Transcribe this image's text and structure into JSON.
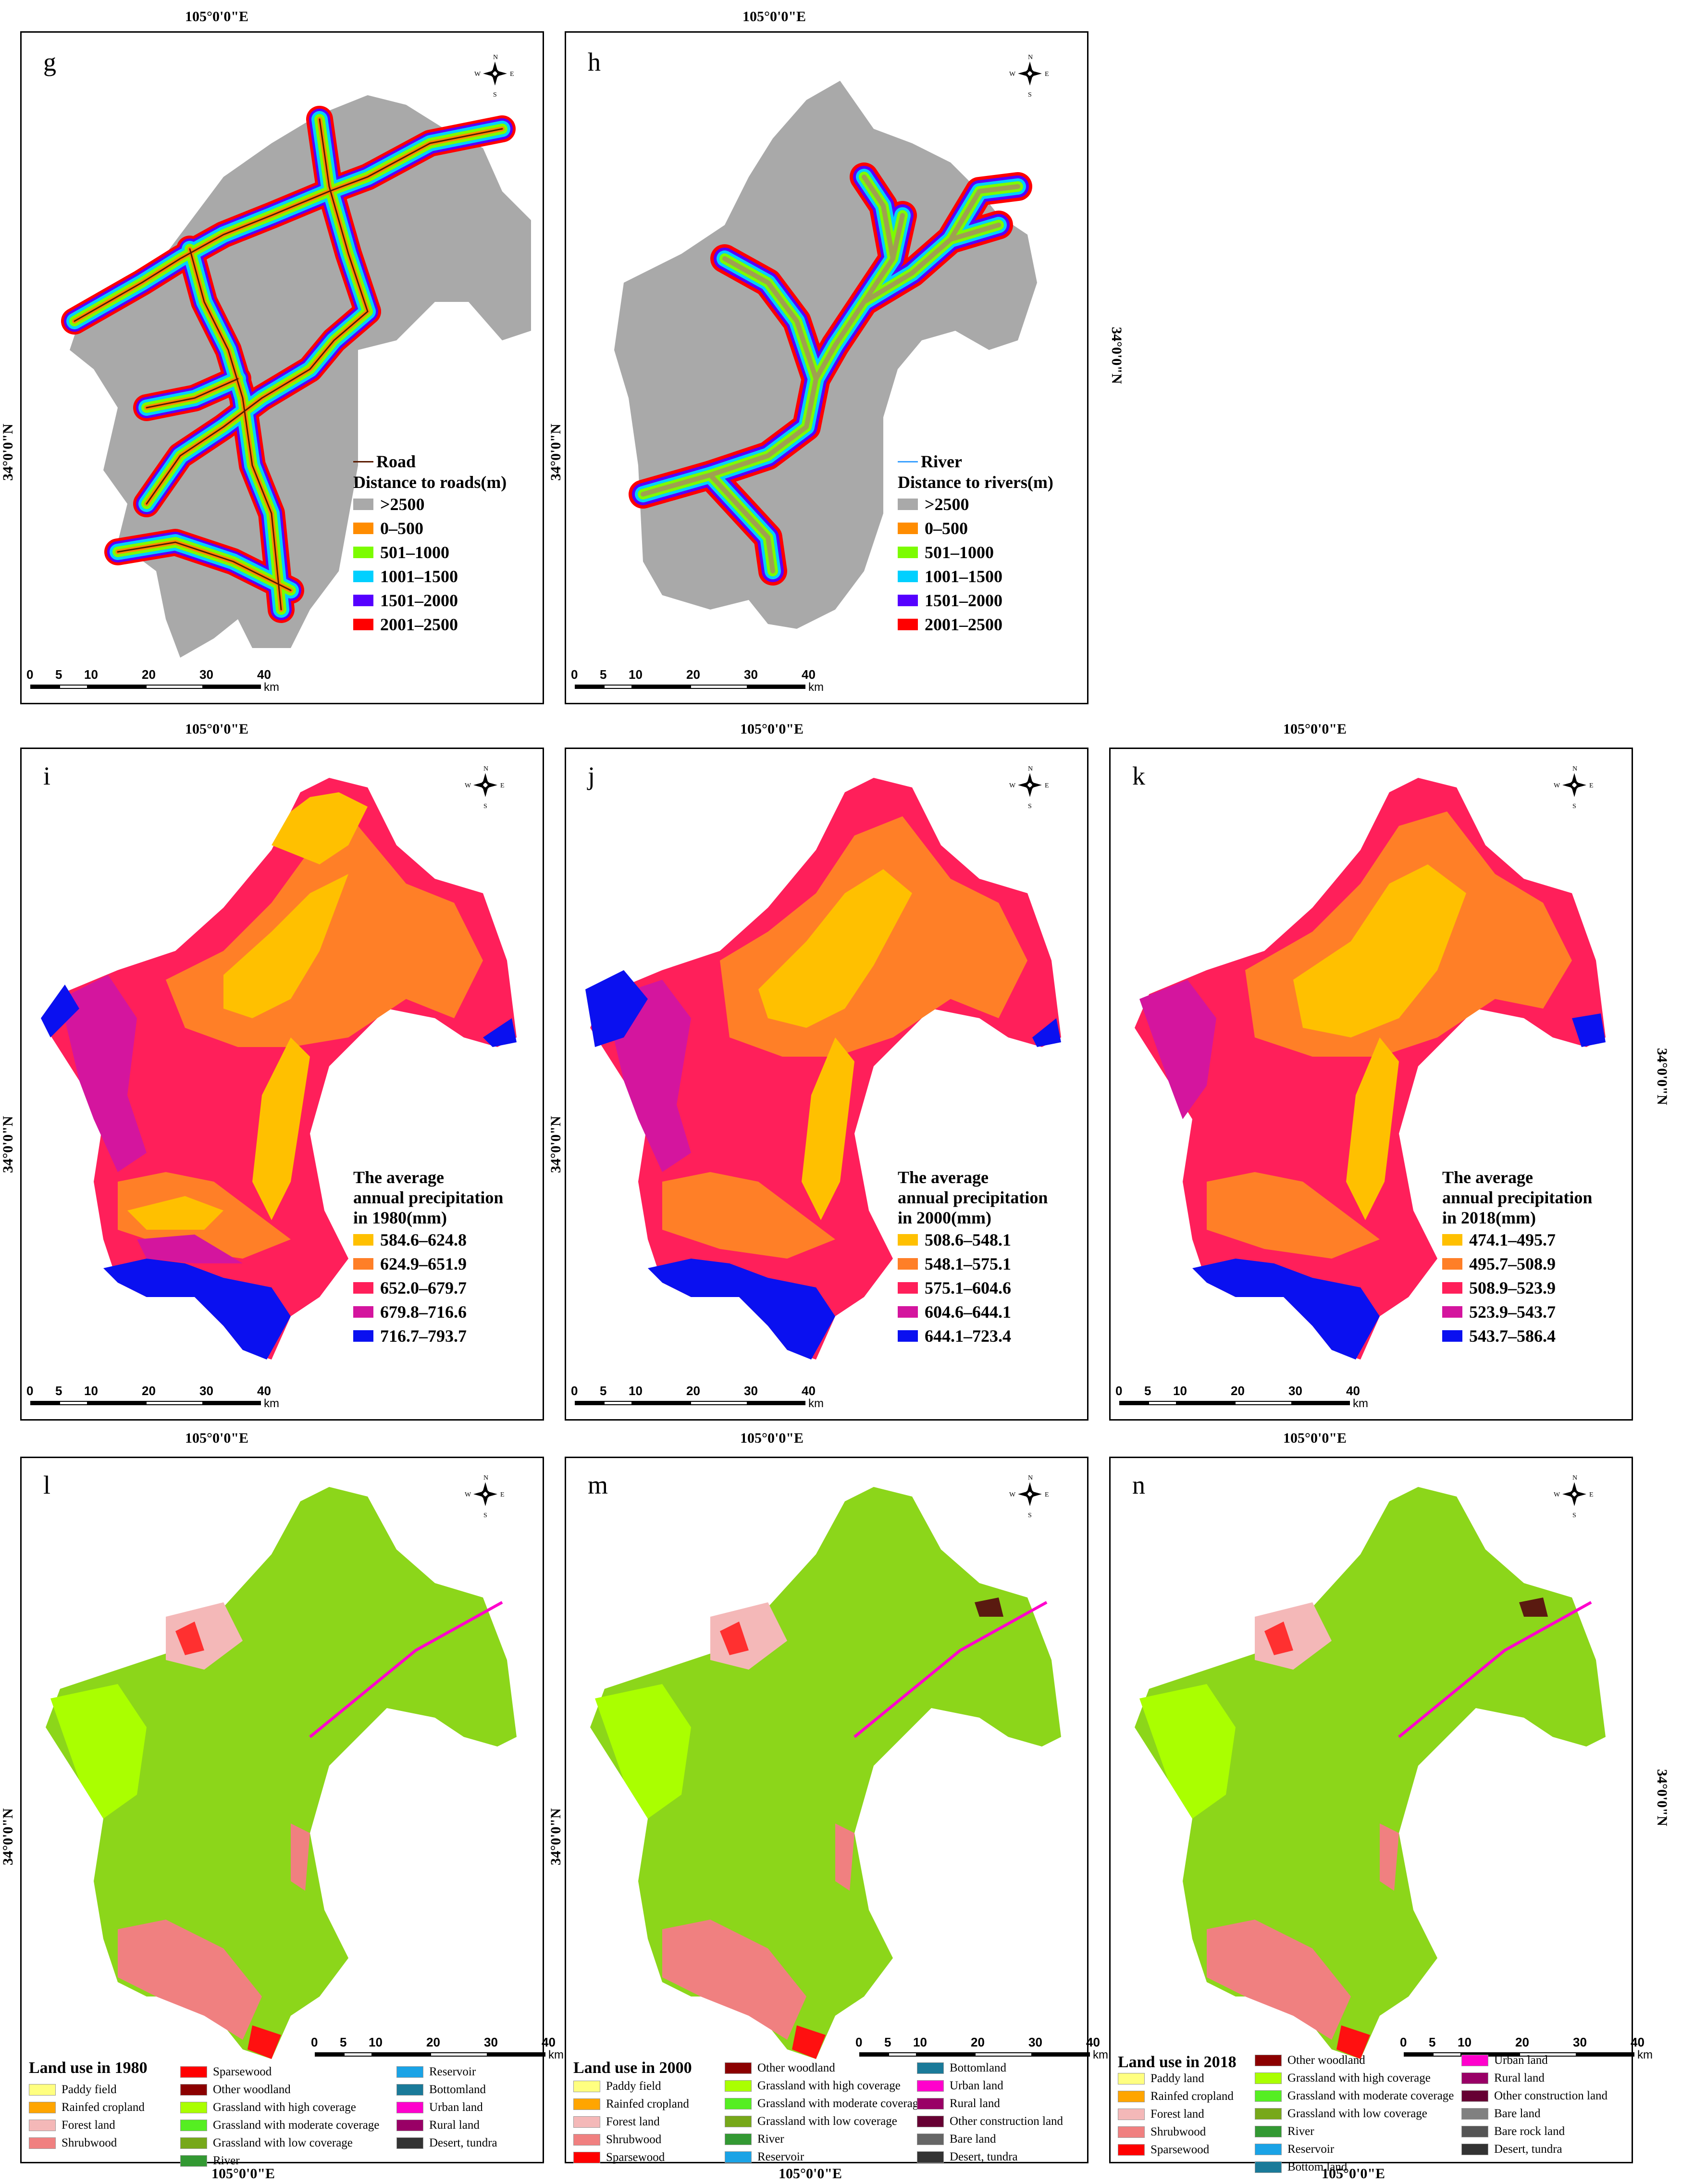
{
  "coords": {
    "lon": "105°0'0\"E",
    "lat": "34°0'0\"N"
  },
  "compass": {
    "n": "N",
    "s": "S",
    "e": "E",
    "w": "W"
  },
  "scale": {
    "ticks": [
      "0",
      "5",
      "10",
      "20",
      "30",
      "40"
    ],
    "unit": "km"
  },
  "panels": {
    "g": {
      "label": "g",
      "line_legend": "Road",
      "legend_title": "Distance to roads(m)",
      "items": [
        {
          "label": ">2500",
          "color": "#a9a9a9"
        },
        {
          "label": "0–500",
          "color": "#ff8c00"
        },
        {
          "label": "501–1000",
          "color": "#7cfc00"
        },
        {
          "label": "1001–1500",
          "color": "#00d0ff"
        },
        {
          "label": "1501–2000",
          "color": "#5500ff"
        },
        {
          "label": "2001–2500",
          "color": "#ff0000"
        }
      ]
    },
    "h": {
      "label": "h",
      "line_legend": "River",
      "legend_title": "Distance to rivers(m)",
      "items": [
        {
          "label": ">2500",
          "color": "#a9a9a9"
        },
        {
          "label": "0–500",
          "color": "#ff8c00"
        },
        {
          "label": "501–1000",
          "color": "#7cfc00"
        },
        {
          "label": "1001–1500",
          "color": "#00d0ff"
        },
        {
          "label": "1501–2000",
          "color": "#5500ff"
        },
        {
          "label": "2001–2500",
          "color": "#ff0000"
        }
      ]
    },
    "i": {
      "label": "i",
      "legend_title": [
        "The average",
        "annual precipitation",
        "in 1980(mm)"
      ],
      "items": [
        {
          "label": "584.6–624.8",
          "color": "#ffc000"
        },
        {
          "label": "624.9–651.9",
          "color": "#ff7f27"
        },
        {
          "label": "652.0–679.7",
          "color": "#ff1f5a"
        },
        {
          "label": "679.8–716.6",
          "color": "#d4159e"
        },
        {
          "label": "716.7–793.7",
          "color": "#0a10f0"
        }
      ]
    },
    "j": {
      "label": "j",
      "legend_title": [
        "The average",
        "annual precipitation",
        "in 2000(mm)"
      ],
      "items": [
        {
          "label": "508.6–548.1",
          "color": "#ffc000"
        },
        {
          "label": "548.1–575.1",
          "color": "#ff7f27"
        },
        {
          "label": "575.1–604.6",
          "color": "#ff1f5a"
        },
        {
          "label": "604.6–644.1",
          "color": "#d4159e"
        },
        {
          "label": "644.1–723.4",
          "color": "#0a10f0"
        }
      ]
    },
    "k": {
      "label": "k",
      "legend_title": [
        "The average",
        "annual precipitation",
        "in 2018(mm)"
      ],
      "items": [
        {
          "label": "474.1–495.7",
          "color": "#ffc000"
        },
        {
          "label": "495.7–508.9",
          "color": "#ff7f27"
        },
        {
          "label": "508.9–523.9",
          "color": "#ff1f5a"
        },
        {
          "label": "523.9–543.7",
          "color": "#d4159e"
        },
        {
          "label": "543.7–586.4",
          "color": "#0a10f0"
        }
      ]
    },
    "l": {
      "label": "l",
      "legend_title": "Land use in 1980",
      "columns": [
        [
          {
            "label": "Paddy field",
            "color": "#ffff80"
          },
          {
            "label": "Rainfed cropland",
            "color": "#ffa500"
          },
          {
            "label": "Forest land",
            "color": "#f4b8b8"
          },
          {
            "label": "Shrubwood",
            "color": "#f08080"
          }
        ],
        [
          {
            "label": "Sparsewood",
            "color": "#ff0000"
          },
          {
            "label": "Other woodland",
            "color": "#8b0000"
          },
          {
            "label": "Grassland with high coverage",
            "color": "#aaff00"
          },
          {
            "label": "Grassland with moderate coverage",
            "color": "#55ee22"
          },
          {
            "label": "Grassland with low coverage",
            "color": "#77a81a"
          },
          {
            "label": "River",
            "color": "#339933"
          }
        ],
        [
          {
            "label": "Reservoir",
            "color": "#1aa3e6"
          },
          {
            "label": "Bottomland",
            "color": "#1a7a99"
          },
          {
            "label": "Urban land",
            "color": "#ff00cc"
          },
          {
            "label": "Rural land",
            "color": "#990066"
          },
          {
            "label": "Desert, tundra",
            "color": "#333333"
          }
        ]
      ]
    },
    "m": {
      "label": "m",
      "legend_title": "Land use in 2000",
      "columns": [
        [
          {
            "label": "Paddy field",
            "color": "#ffff80"
          },
          {
            "label": "Rainfed cropland",
            "color": "#ffa500"
          },
          {
            "label": "Forest land",
            "color": "#f4b8b8"
          },
          {
            "label": "Shrubwood",
            "color": "#f08080"
          },
          {
            "label": "Sparsewood",
            "color": "#ff0000"
          }
        ],
        [
          {
            "label": "Other woodland",
            "color": "#8b0000"
          },
          {
            "label": "Grassland with high coverage",
            "color": "#aaff00"
          },
          {
            "label": "Grassland with moderate coverage",
            "color": "#55ee22"
          },
          {
            "label": "Grassland with low coverage",
            "color": "#77a81a"
          },
          {
            "label": "River",
            "color": "#339933"
          },
          {
            "label": "Reservoir",
            "color": "#1aa3e6"
          }
        ],
        [
          {
            "label": "Bottomland",
            "color": "#1a7a99"
          },
          {
            "label": "Urban land",
            "color": "#ff00cc"
          },
          {
            "label": "Rural land",
            "color": "#990066"
          },
          {
            "label": "Other construction land",
            "color": "#660033"
          },
          {
            "label": "Bare land",
            "color": "#666666"
          },
          {
            "label": "Desert, tundra",
            "color": "#333333"
          }
        ]
      ]
    },
    "n": {
      "label": "n",
      "legend_title": "Land use in 2018",
      "columns": [
        [
          {
            "label": "Paddy land",
            "color": "#ffff80"
          },
          {
            "label": "Rainfed cropland",
            "color": "#ffa500"
          },
          {
            "label": "Forest land",
            "color": "#f4b8b8"
          },
          {
            "label": "Shrubwood",
            "color": "#f08080"
          },
          {
            "label": "Sparsewood",
            "color": "#ff0000"
          }
        ],
        [
          {
            "label": "Other woodland",
            "color": "#8b0000"
          },
          {
            "label": "Grassland with high coverage",
            "color": "#aaff00"
          },
          {
            "label": "Grassland with moderate coverage",
            "color": "#55ee22"
          },
          {
            "label": "Grassland with low coverage",
            "color": "#77a81a"
          },
          {
            "label": "River",
            "color": "#339933"
          },
          {
            "label": "Reservoir",
            "color": "#1aa3e6"
          },
          {
            "label": "Bottom land",
            "color": "#1a7a99"
          }
        ],
        [
          {
            "label": "Urban land",
            "color": "#ff00cc"
          },
          {
            "label": "Rural land",
            "color": "#990066"
          },
          {
            "label": "Other construction land",
            "color": "#660033"
          },
          {
            "label": "Bare land",
            "color": "#808080"
          },
          {
            "label": "Bare rock land",
            "color": "#555555"
          },
          {
            "label": "Desert, tundra",
            "color": "#333333"
          }
        ]
      ]
    }
  }
}
